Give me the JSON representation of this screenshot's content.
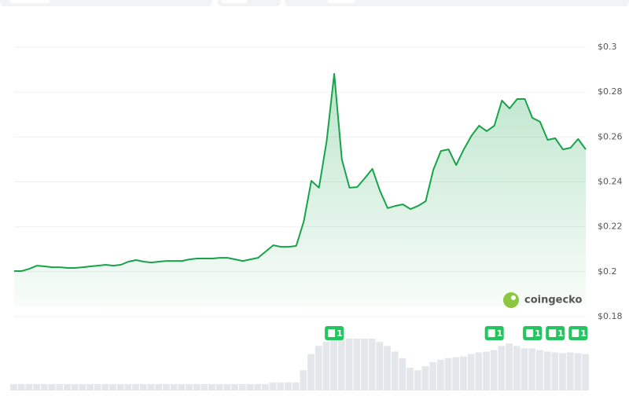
{
  "chart_data": {
    "type": "area",
    "values": [
      0.2003,
      0.2003,
      0.2013,
      0.2027,
      0.2024,
      0.202,
      0.202,
      0.2017,
      0.2017,
      0.202,
      0.2024,
      0.2027,
      0.2031,
      0.2027,
      0.2031,
      0.2045,
      0.2052,
      0.2045,
      0.2041,
      0.2045,
      0.2048,
      0.2048,
      0.2048,
      0.2055,
      0.2059,
      0.2059,
      0.2059,
      0.2062,
      0.2062,
      0.2055,
      0.2048,
      0.2055,
      0.2062,
      0.209,
      0.2118,
      0.2111,
      0.2111,
      0.2115,
      0.2223,
      0.2405,
      0.2374,
      0.258,
      0.2881,
      0.25,
      0.2374,
      0.2377,
      0.2416,
      0.2458,
      0.236,
      0.2283,
      0.2293,
      0.23,
      0.2279,
      0.2293,
      0.2314,
      0.2454,
      0.2538,
      0.2545,
      0.2475,
      0.2545,
      0.2605,
      0.265,
      0.2626,
      0.265,
      0.2762,
      0.2727,
      0.2769,
      0.2769,
      0.2685,
      0.2668,
      0.2587,
      0.2594,
      0.2545,
      0.2552,
      0.2591,
      0.2545
    ],
    "volumes": [
      8,
      8,
      8,
      8,
      8,
      8,
      8,
      8,
      8,
      8,
      8,
      8,
      8,
      8,
      8,
      8,
      8,
      8,
      8,
      8,
      8,
      8,
      8,
      8,
      8,
      8,
      8,
      8,
      8,
      8,
      8,
      8,
      8,
      8,
      10,
      10,
      10,
      10,
      25,
      45,
      55,
      60,
      62,
      63,
      64,
      64,
      64,
      64,
      60,
      55,
      48,
      40,
      28,
      25,
      30,
      35,
      38,
      40,
      41,
      42,
      45,
      47,
      48,
      50,
      55,
      58,
      55,
      52,
      52,
      50,
      48,
      47,
      46,
      47,
      46,
      45
    ],
    "color": "#16a34a",
    "ylim": [
      0.18,
      0.3
    ],
    "yticks": [
      {
        "value": 0.18,
        "label": "$0.18"
      },
      {
        "value": 0.2,
        "label": "$0.2"
      },
      {
        "value": 0.22,
        "label": "$0.22"
      },
      {
        "value": 0.24,
        "label": "$0.24"
      },
      {
        "value": 0.26,
        "label": "$0.26"
      },
      {
        "value": 0.28,
        "label": "$0.28"
      },
      {
        "value": 0.3,
        "label": "$0.3"
      }
    ],
    "grid": true,
    "events": [
      {
        "at": 42,
        "label": "1"
      },
      {
        "at": 63,
        "label": "1"
      },
      {
        "at": 68,
        "label": "1"
      },
      {
        "at": 71,
        "label": "1"
      },
      {
        "at": 74,
        "label": "1"
      }
    ],
    "watermark": "coingecko"
  }
}
